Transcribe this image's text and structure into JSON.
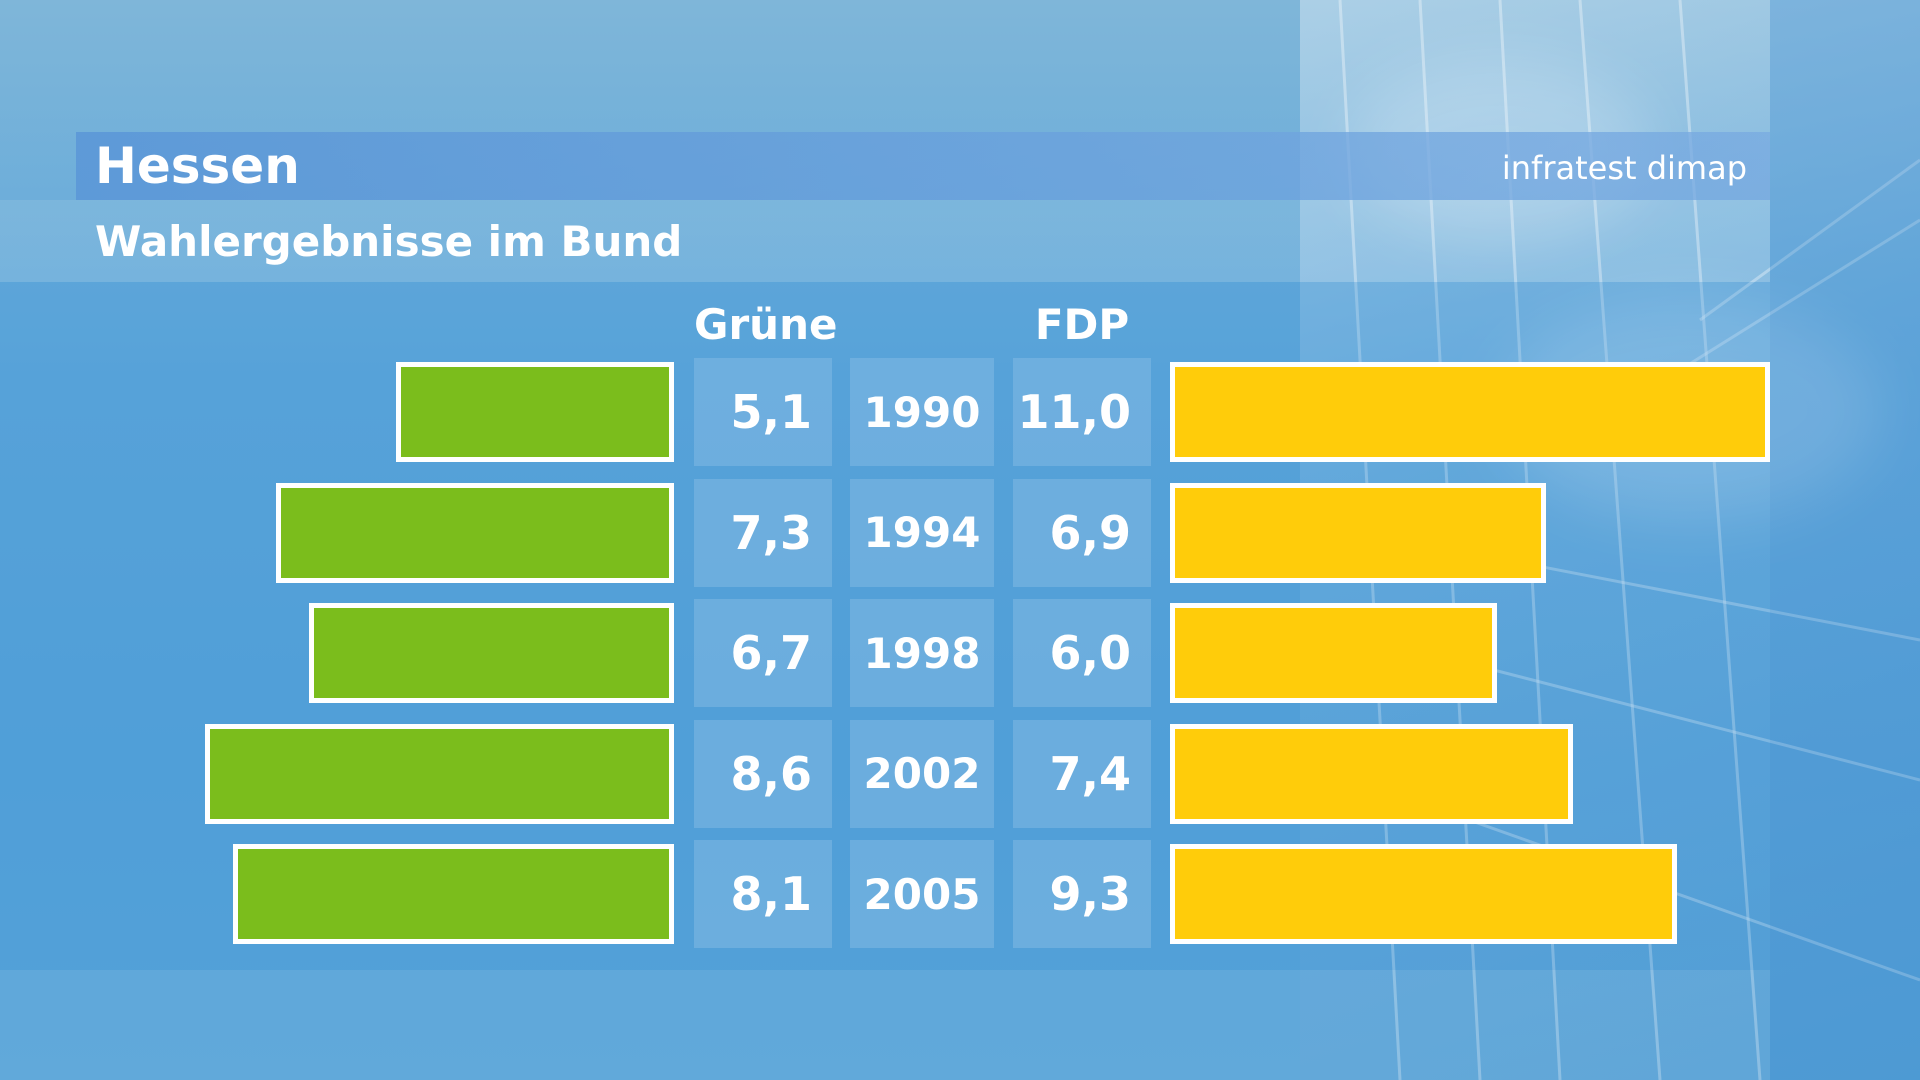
{
  "title": "Hessen",
  "subtitle": "Wahlergebnisse im Bund",
  "brand": "infratest dimap",
  "colors": {
    "gruene": "#7bbd1c",
    "fdp": "#ffcc0a"
  },
  "chart_data": {
    "type": "bar",
    "title": "Wahlergebnisse im Bund",
    "categories": [
      "1990",
      "1994",
      "1998",
      "2002",
      "2005"
    ],
    "series": [
      {
        "name": "Grüne",
        "values": [
          5.1,
          7.3,
          6.7,
          8.6,
          8.1
        ],
        "labels": [
          "5,1",
          "7,3",
          "6,7",
          "8,6",
          "8,1"
        ]
      },
      {
        "name": "FDP",
        "values": [
          11.0,
          6.9,
          6.0,
          7.4,
          9.3
        ],
        "labels": [
          "11,0",
          "6,9",
          "6,0",
          "7,4",
          "9,3"
        ]
      }
    ]
  }
}
